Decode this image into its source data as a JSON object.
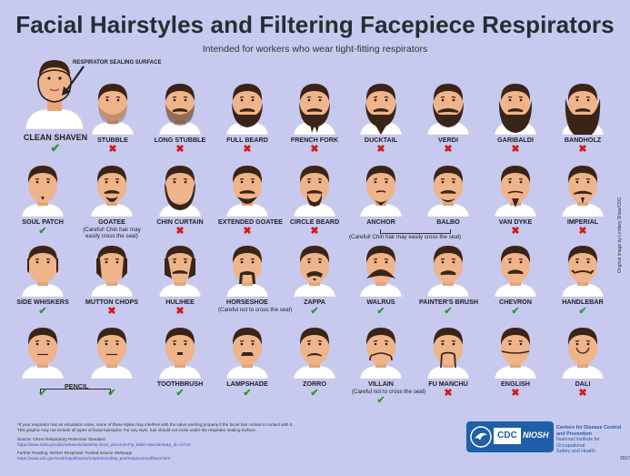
{
  "title": "Facial Hairstyles and Filtering Facepiece Respirators",
  "subtitle": "Intended for workers who wear tight-fitting respirators",
  "respirator_label": "RESPIRATOR SEALING SURFACE",
  "clean": {
    "label": "CLEAN SHAVEN",
    "ok": true
  },
  "rows": [
    [
      {
        "label": "STUBBLE",
        "ok": false,
        "style": "stubble"
      },
      {
        "label": "LONG STUBBLE",
        "ok": false,
        "style": "longstubble"
      },
      {
        "label": "FULL BEARD",
        "ok": false,
        "style": "fullbeard"
      },
      {
        "label": "FRENCH FORK",
        "ok": false,
        "style": "fork"
      },
      {
        "label": "DUCKTAIL",
        "ok": false,
        "style": "ducktail"
      },
      {
        "label": "VERDI",
        "ok": false,
        "style": "verdi"
      },
      {
        "label": "GARIBALDI",
        "ok": false,
        "style": "garibaldi"
      },
      {
        "label": "BANDHOLZ",
        "ok": false,
        "style": "bandholz"
      }
    ],
    [
      {
        "label": "SOUL PATCH",
        "ok": true,
        "style": "soulpatch"
      },
      {
        "label": "GOATEE",
        "ok": null,
        "style": "goatee",
        "note": "(Careful! Chin hair may\neasily cross the seal)"
      },
      {
        "label": "CHIN CURTAIN",
        "ok": false,
        "style": "chincurtain"
      },
      {
        "label": "EXTENDED GOATEE",
        "ok": false,
        "style": "extgoatee"
      },
      {
        "label": "CIRCLE BEARD",
        "ok": false,
        "style": "circle"
      },
      {
        "label": "ANCHOR",
        "ok": null,
        "style": "anchor"
      },
      {
        "label": "BALBO",
        "ok": null,
        "style": "balbo"
      },
      {
        "label": "VAN DYKE",
        "ok": false,
        "style": "vandyke"
      },
      {
        "label": "IMPERIAL",
        "ok": false,
        "style": "imperial"
      }
    ],
    [
      {
        "label": "SIDE WHISKERS",
        "ok": true,
        "style": "sidewhiskers"
      },
      {
        "label": "MUTTON CHOPS",
        "ok": false,
        "style": "mutton"
      },
      {
        "label": "HULIHEE",
        "ok": false,
        "style": "hulihee"
      },
      {
        "label": "HORSESHOE",
        "ok": null,
        "style": "horseshoe",
        "note": "(Careful not to cross the seal)"
      },
      {
        "label": "ZAPPA",
        "ok": true,
        "style": "zappa"
      },
      {
        "label": "WALRUS",
        "ok": true,
        "style": "walrus"
      },
      {
        "label": "PAINTER'S BRUSH",
        "ok": true,
        "style": "painter"
      },
      {
        "label": "CHEVRON",
        "ok": true,
        "style": "chevron"
      },
      {
        "label": "HANDLEBAR",
        "ok": true,
        "style": "handlebar"
      }
    ],
    [
      {
        "label": "",
        "ok": true,
        "style": "pencil1"
      },
      {
        "label": "",
        "ok": true,
        "style": "pencil2"
      },
      {
        "label": "TOOTHBRUSH",
        "ok": true,
        "style": "toothbrush"
      },
      {
        "label": "LAMPSHADE",
        "ok": true,
        "style": "lampshade"
      },
      {
        "label": "ZORRO",
        "ok": true,
        "style": "zorro"
      },
      {
        "label": "VILLAIN",
        "ok": true,
        "style": "villain",
        "note": "(Careful not to cross the seal)"
      },
      {
        "label": "FU MANCHU",
        "ok": false,
        "style": "fumanchu"
      },
      {
        "label": "ENGLISH",
        "ok": false,
        "style": "english"
      },
      {
        "label": "DALI",
        "ok": false,
        "style": "dali"
      }
    ]
  ],
  "pencil_label": "PENCIL",
  "anchor_note": "(Careful! Chin hair may easily cross the seal)",
  "footer": {
    "line1": "*If your respirator has an exhalation valve, some of these styles may interfere with the valve working properly if the facial hair comes in contact with it.",
    "line2": "This graphic may not include all types of facial hairstyles. For any style, hair should not cross under the respirator sealing surface.",
    "source_label": "Source: OSHA Respiratory Protection Standard",
    "source_url": "https://www.osha.gov/pls/oshaweb/owadisp.show_document?p_table=standards&p_id=12716",
    "further_label": "Further Reading: NIOSH Respirator Trusted-Source Webpage",
    "further_url": "https://www.cdc.gov/niosh/npptl/topics/respirators/disp_part/respsource3fittest.html"
  },
  "logo": {
    "cdc": "CDC",
    "niosh": "NIOSH"
  },
  "cdc_text": {
    "l1": "Centers for Disease Control",
    "l2": "and Prevention",
    "l3": "National Institute for Occupational",
    "l4": "Safety and Health"
  },
  "side_text": "Original image by Lindsey Shaw/CDC",
  "page_number": "2017",
  "colors": {
    "background": "#c7c9ee",
    "hair": "#3a2418",
    "skin": "#f0b48a",
    "shirt": "#ffffff",
    "ok": "#2f9a35",
    "no": "#d11a1a"
  }
}
